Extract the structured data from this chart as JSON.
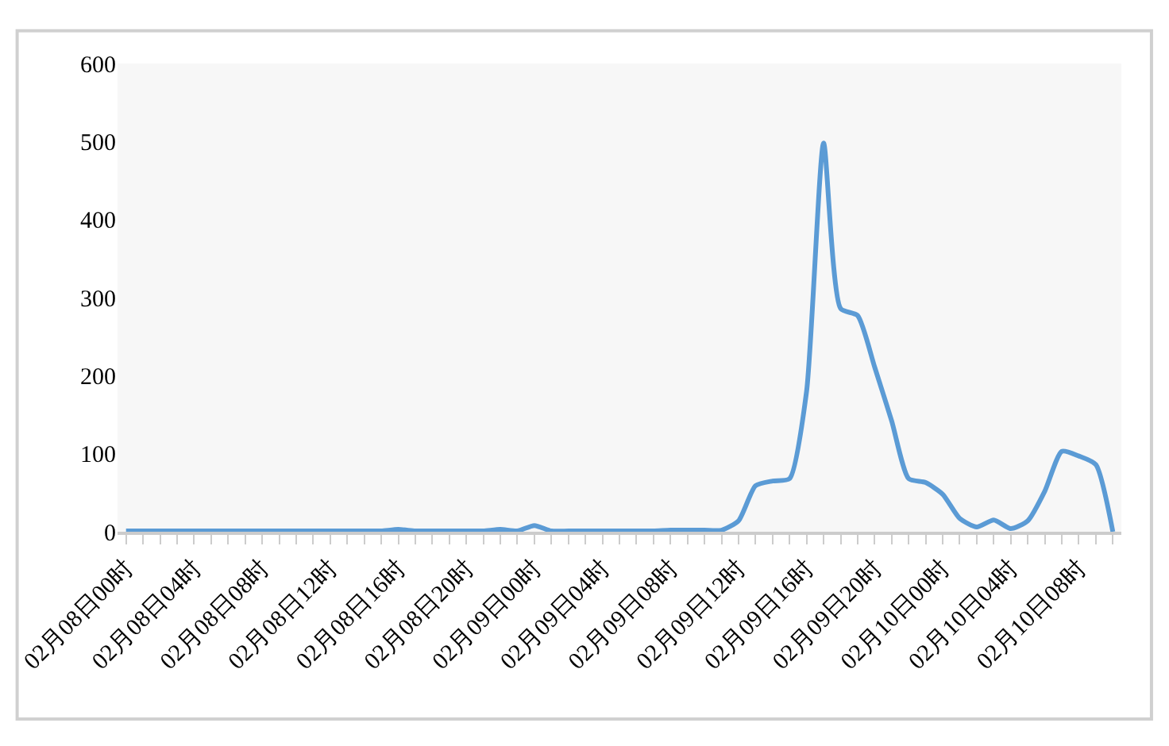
{
  "chart_data": {
    "type": "line",
    "categories": [
      "02月08日00时",
      null,
      null,
      null,
      "02月08日04时",
      null,
      null,
      null,
      "02月08日08时",
      null,
      null,
      null,
      "02月08日12时",
      null,
      null,
      null,
      "02月08日16时",
      null,
      null,
      null,
      "02月08日20时",
      null,
      null,
      null,
      "02月09日00时",
      null,
      null,
      null,
      "02月09日04时",
      null,
      null,
      null,
      "02月09日08时",
      null,
      null,
      null,
      "02月09日12时",
      null,
      null,
      null,
      "02月09日16时",
      null,
      null,
      null,
      "02月09日20时",
      null,
      null,
      null,
      "02月10日00时",
      null,
      null,
      null,
      "02月10日04时",
      null,
      null,
      null,
      "02月10日08时",
      null,
      null
    ],
    "series": [
      {
        "color": "#5b9bd5",
        "values": [
          1,
          1,
          1,
          1,
          1,
          1,
          1,
          1,
          1,
          1,
          1,
          1,
          1,
          1,
          1,
          1,
          3,
          1,
          1,
          1,
          1,
          1,
          3,
          1,
          8,
          1,
          1,
          1,
          1,
          1,
          1,
          1,
          2,
          2,
          2,
          2,
          14,
          59,
          65,
          68,
          180,
          498,
          286,
          277,
          211,
          142,
          68,
          63,
          48,
          17,
          6,
          15,
          4,
          14,
          52,
          103,
          97,
          86,
          0
        ]
      }
    ],
    "ylim": [
      0,
      600
    ],
    "yticks": [
      0,
      100,
      200,
      300,
      400,
      500,
      600
    ],
    "grid": false,
    "marker": "none",
    "line_style": "solid"
  }
}
